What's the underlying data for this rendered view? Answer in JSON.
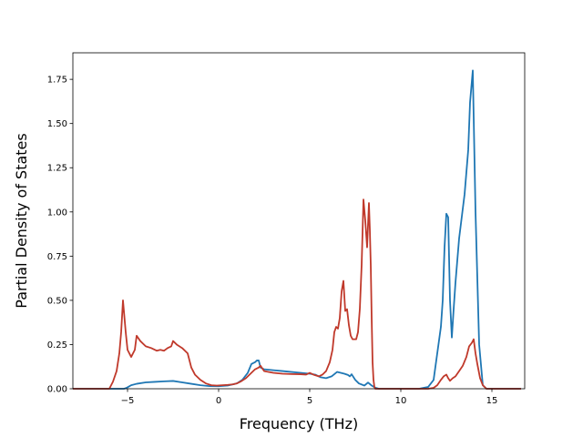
{
  "chart_data": {
    "type": "line",
    "title": "",
    "xlabel": "Frequency (THz)",
    "ylabel": "Partial Density of States",
    "xlim": [
      -8,
      16.8
    ],
    "ylim": [
      0,
      1.9
    ],
    "xticks": [
      -5,
      0,
      5,
      10,
      15
    ],
    "xtick_labels": [
      "−5",
      "0",
      "5",
      "10",
      "15"
    ],
    "yticks": [
      0,
      0.25,
      0.5,
      0.75,
      1.0,
      1.25,
      1.5,
      1.75
    ],
    "ytick_labels": [
      "0.00",
      "0.25",
      "0.50",
      "0.75",
      "1.00",
      "1.25",
      "1.50",
      "1.75"
    ],
    "grid": false,
    "legend": "none",
    "series": [
      {
        "color": "#1f77b4",
        "x": [
          -8,
          -6.3,
          -5.2,
          -5.1,
          -5.0,
          -4.8,
          -4.5,
          -4.0,
          -3.5,
          -3.0,
          -2.5,
          -2.0,
          -1.5,
          -1.0,
          -0.5,
          0,
          0.5,
          1.0,
          1.3,
          1.6,
          1.8,
          2.0,
          2.1,
          2.2,
          2.3,
          2.5,
          3.0,
          3.5,
          4.0,
          4.5,
          5.0,
          5.3,
          5.6,
          5.9,
          6.2,
          6.5,
          6.7,
          6.9,
          7.1,
          7.2,
          7.3,
          7.5,
          7.7,
          8.0,
          8.2,
          8.4,
          8.6,
          8.8,
          9.0,
          10.0,
          11.0,
          11.5,
          11.8,
          12.0,
          12.2,
          12.3,
          12.4,
          12.5,
          12.6,
          12.7,
          12.8,
          12.9,
          13.0,
          13.2,
          13.5,
          13.7,
          13.8,
          13.95,
          14.1,
          14.3,
          14.5,
          14.7,
          16.6
        ],
        "y": [
          0,
          0,
          0,
          0.003,
          0.008,
          0.02,
          0.028,
          0.036,
          0.039,
          0.042,
          0.044,
          0.036,
          0.028,
          0.02,
          0.015,
          0.014,
          0.018,
          0.03,
          0.05,
          0.09,
          0.14,
          0.15,
          0.16,
          0.16,
          0.12,
          0.11,
          0.105,
          0.1,
          0.095,
          0.09,
          0.085,
          0.08,
          0.065,
          0.06,
          0.07,
          0.095,
          0.09,
          0.085,
          0.078,
          0.07,
          0.082,
          0.05,
          0.03,
          0.018,
          0.035,
          0.018,
          0.006,
          0,
          0,
          0,
          0,
          0.01,
          0.05,
          0.2,
          0.35,
          0.5,
          0.8,
          0.99,
          0.97,
          0.5,
          0.29,
          0.45,
          0.6,
          0.85,
          1.1,
          1.35,
          1.62,
          1.8,
          1.0,
          0.25,
          0.02,
          0,
          0
        ]
      },
      {
        "color": "#c0392b",
        "x": [
          -8,
          -6.3,
          -6.0,
          -5.8,
          -5.6,
          -5.45,
          -5.35,
          -5.25,
          -5.1,
          -5.0,
          -4.8,
          -4.6,
          -4.5,
          -4.3,
          -4.0,
          -3.7,
          -3.4,
          -3.2,
          -3.0,
          -2.8,
          -2.6,
          -2.5,
          -2.3,
          -2.0,
          -1.7,
          -1.5,
          -1.3,
          -1.0,
          -0.7,
          -0.4,
          -0.1,
          0.2,
          0.5,
          0.8,
          1.0,
          1.2,
          1.5,
          1.8,
          2.0,
          2.2,
          2.3,
          2.5,
          3.0,
          3.5,
          4.0,
          4.5,
          4.8,
          5.0,
          5.2,
          5.5,
          5.7,
          5.9,
          6.1,
          6.25,
          6.35,
          6.45,
          6.55,
          6.65,
          6.75,
          6.85,
          6.95,
          7.05,
          7.15,
          7.25,
          7.35,
          7.45,
          7.55,
          7.65,
          7.75,
          7.85,
          7.95,
          8.05,
          8.15,
          8.25,
          8.3,
          8.35,
          8.4,
          8.45,
          8.5,
          8.55,
          8.6,
          8.7,
          8.8,
          9.0,
          10.0,
          11.5,
          11.8,
          12.0,
          12.2,
          12.35,
          12.5,
          12.6,
          12.7,
          12.85,
          13.0,
          13.2,
          13.4,
          13.6,
          13.75,
          13.9,
          14.0,
          14.1,
          14.2,
          14.35,
          14.5,
          14.7,
          16.6
        ],
        "y": [
          0,
          0,
          0,
          0.04,
          0.1,
          0.2,
          0.32,
          0.5,
          0.32,
          0.22,
          0.18,
          0.22,
          0.3,
          0.27,
          0.24,
          0.23,
          0.215,
          0.22,
          0.215,
          0.23,
          0.24,
          0.27,
          0.25,
          0.23,
          0.2,
          0.12,
          0.08,
          0.05,
          0.03,
          0.02,
          0.018,
          0.02,
          0.022,
          0.025,
          0.03,
          0.04,
          0.06,
          0.09,
          0.11,
          0.12,
          0.13,
          0.1,
          0.09,
          0.085,
          0.083,
          0.082,
          0.08,
          0.09,
          0.08,
          0.07,
          0.08,
          0.1,
          0.15,
          0.22,
          0.32,
          0.35,
          0.34,
          0.4,
          0.55,
          0.61,
          0.44,
          0.45,
          0.36,
          0.3,
          0.28,
          0.28,
          0.28,
          0.32,
          0.45,
          0.7,
          1.07,
          0.95,
          0.8,
          1.05,
          0.9,
          0.7,
          0.4,
          0.15,
          0.05,
          0.01,
          0,
          0,
          0,
          0,
          0,
          0,
          0.005,
          0.02,
          0.05,
          0.07,
          0.08,
          0.06,
          0.045,
          0.06,
          0.07,
          0.1,
          0.13,
          0.18,
          0.24,
          0.26,
          0.28,
          0.2,
          0.14,
          0.06,
          0.02,
          0,
          0
        ]
      }
    ]
  }
}
